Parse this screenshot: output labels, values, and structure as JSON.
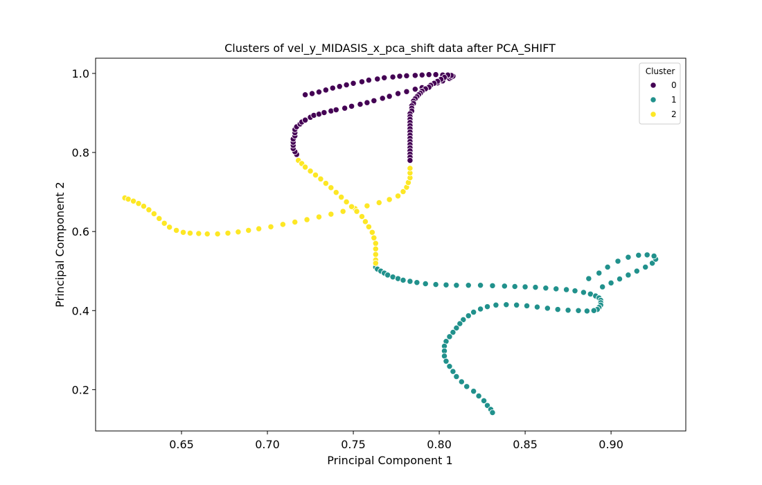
{
  "chart_data": {
    "type": "scatter",
    "title": "Clusters of vel_y_MIDASIS_x_pca_shift data after PCA_SHIFT",
    "xlabel": "Principal Component 1",
    "ylabel": "Principal Component 2",
    "xlim": [
      0.6,
      0.9435
    ],
    "ylim": [
      0.0955,
      1.0385
    ],
    "xticks": [
      "0.65",
      "0.70",
      "0.75",
      "0.80",
      "0.85",
      "0.90"
    ],
    "xtick_values": [
      0.65,
      0.7,
      0.75,
      0.8,
      0.85,
      0.9
    ],
    "yticks": [
      "0.2",
      "0.4",
      "0.6",
      "0.8",
      "1.0"
    ],
    "ytick_values": [
      0.2,
      0.4,
      0.6,
      0.8,
      1.0
    ],
    "grid": false,
    "legend": {
      "title": "Cluster",
      "placement": "upper right"
    },
    "series": [
      {
        "name": "0",
        "color": "#440154",
        "points": [
          [
            0.717,
            0.795
          ],
          [
            0.716,
            0.802
          ],
          [
            0.715,
            0.81
          ],
          [
            0.715,
            0.818
          ],
          [
            0.715,
            0.826
          ],
          [
            0.715,
            0.834
          ],
          [
            0.716,
            0.842
          ],
          [
            0.716,
            0.85
          ],
          [
            0.716,
            0.858
          ],
          [
            0.717,
            0.865
          ],
          [
            0.719,
            0.872
          ],
          [
            0.72,
            0.877
          ],
          [
            0.722,
            0.882
          ],
          [
            0.725,
            0.889
          ],
          [
            0.727,
            0.894
          ],
          [
            0.73,
            0.897
          ],
          [
            0.733,
            0.901
          ],
          [
            0.737,
            0.905
          ],
          [
            0.74,
            0.908
          ],
          [
            0.745,
            0.912
          ],
          [
            0.749,
            0.917
          ],
          [
            0.754,
            0.922
          ],
          [
            0.758,
            0.926
          ],
          [
            0.762,
            0.931
          ],
          [
            0.767,
            0.937
          ],
          [
            0.771,
            0.942
          ],
          [
            0.776,
            0.949
          ],
          [
            0.781,
            0.954
          ],
          [
            0.786,
            0.96
          ],
          [
            0.79,
            0.964
          ],
          [
            0.795,
            0.97
          ],
          [
            0.799,
            0.976
          ],
          [
            0.802,
            0.981
          ],
          [
            0.806,
            0.987
          ],
          [
            0.807,
            0.99
          ],
          [
            0.808,
            0.993
          ],
          [
            0.807,
            0.995
          ],
          [
            0.805,
            0.996
          ],
          [
            0.802,
            0.996
          ],
          [
            0.798,
            0.997
          ],
          [
            0.794,
            0.997
          ],
          [
            0.79,
            0.996
          ],
          [
            0.786,
            0.995
          ],
          [
            0.781,
            0.994
          ],
          [
            0.777,
            0.993
          ],
          [
            0.773,
            0.991
          ],
          [
            0.768,
            0.989
          ],
          [
            0.764,
            0.986
          ],
          [
            0.759,
            0.983
          ],
          [
            0.755,
            0.979
          ],
          [
            0.75,
            0.975
          ],
          [
            0.746,
            0.971
          ],
          [
            0.742,
            0.967
          ],
          [
            0.738,
            0.963
          ],
          [
            0.734,
            0.958
          ],
          [
            0.73,
            0.953
          ],
          [
            0.726,
            0.949
          ],
          [
            0.722,
            0.946
          ],
          [
            0.803,
            0.99
          ],
          [
            0.801,
            0.985
          ],
          [
            0.799,
            0.98
          ],
          [
            0.797,
            0.975
          ],
          [
            0.795,
            0.97
          ],
          [
            0.794,
            0.965
          ],
          [
            0.792,
            0.961
          ],
          [
            0.79,
            0.955
          ],
          [
            0.789,
            0.95
          ],
          [
            0.788,
            0.946
          ],
          [
            0.787,
            0.941
          ],
          [
            0.786,
            0.936
          ],
          [
            0.785,
            0.93
          ],
          [
            0.785,
            0.924
          ],
          [
            0.784,
            0.918
          ],
          [
            0.784,
            0.912
          ],
          [
            0.784,
            0.905
          ],
          [
            0.783,
            0.898
          ],
          [
            0.783,
            0.891
          ],
          [
            0.783,
            0.884
          ],
          [
            0.783,
            0.876
          ],
          [
            0.783,
            0.868
          ],
          [
            0.783,
            0.86
          ],
          [
            0.783,
            0.852
          ],
          [
            0.783,
            0.844
          ],
          [
            0.783,
            0.836
          ],
          [
            0.783,
            0.828
          ],
          [
            0.783,
            0.82
          ],
          [
            0.783,
            0.812
          ],
          [
            0.783,
            0.804
          ],
          [
            0.783,
            0.796
          ],
          [
            0.783,
            0.788
          ],
          [
            0.783,
            0.78
          ]
        ]
      },
      {
        "name": "1",
        "color": "#21918c",
        "points": [
          [
            0.763,
            0.51
          ],
          [
            0.764,
            0.505
          ],
          [
            0.766,
            0.5
          ],
          [
            0.768,
            0.495
          ],
          [
            0.77,
            0.49
          ],
          [
            0.773,
            0.485
          ],
          [
            0.776,
            0.481
          ],
          [
            0.779,
            0.477
          ],
          [
            0.783,
            0.474
          ],
          [
            0.787,
            0.471
          ],
          [
            0.792,
            0.468
          ],
          [
            0.798,
            0.466
          ],
          [
            0.804,
            0.465
          ],
          [
            0.81,
            0.464
          ],
          [
            0.817,
            0.464
          ],
          [
            0.824,
            0.464
          ],
          [
            0.831,
            0.463
          ],
          [
            0.838,
            0.462
          ],
          [
            0.844,
            0.461
          ],
          [
            0.85,
            0.46
          ],
          [
            0.856,
            0.459
          ],
          [
            0.862,
            0.457
          ],
          [
            0.868,
            0.455
          ],
          [
            0.874,
            0.453
          ],
          [
            0.879,
            0.45
          ],
          [
            0.884,
            0.446
          ],
          [
            0.888,
            0.442
          ],
          [
            0.891,
            0.437
          ],
          [
            0.893,
            0.432
          ],
          [
            0.894,
            0.426
          ],
          [
            0.894,
            0.42
          ],
          [
            0.894,
            0.414
          ],
          [
            0.893,
            0.408
          ],
          [
            0.892,
            0.403
          ],
          [
            0.89,
            0.4
          ],
          [
            0.886,
            0.399
          ],
          [
            0.881,
            0.4
          ],
          [
            0.875,
            0.401
          ],
          [
            0.869,
            0.403
          ],
          [
            0.863,
            0.406
          ],
          [
            0.857,
            0.409
          ],
          [
            0.851,
            0.412
          ],
          [
            0.845,
            0.414
          ],
          [
            0.839,
            0.415
          ],
          [
            0.833,
            0.414
          ],
          [
            0.828,
            0.41
          ],
          [
            0.824,
            0.404
          ],
          [
            0.82,
            0.396
          ],
          [
            0.817,
            0.387
          ],
          [
            0.814,
            0.377
          ],
          [
            0.812,
            0.367
          ],
          [
            0.81,
            0.356
          ],
          [
            0.808,
            0.345
          ],
          [
            0.806,
            0.334
          ],
          [
            0.804,
            0.322
          ],
          [
            0.803,
            0.31
          ],
          [
            0.803,
            0.298
          ],
          [
            0.803,
            0.285
          ],
          [
            0.804,
            0.272
          ],
          [
            0.806,
            0.259
          ],
          [
            0.808,
            0.246
          ],
          [
            0.81,
            0.233
          ],
          [
            0.813,
            0.22
          ],
          [
            0.816,
            0.208
          ],
          [
            0.82,
            0.196
          ],
          [
            0.823,
            0.184
          ],
          [
            0.826,
            0.172
          ],
          [
            0.828,
            0.16
          ],
          [
            0.83,
            0.15
          ],
          [
            0.831,
            0.142
          ],
          [
            0.895,
            0.46
          ],
          [
            0.9,
            0.47
          ],
          [
            0.905,
            0.48
          ],
          [
            0.91,
            0.49
          ],
          [
            0.915,
            0.5
          ],
          [
            0.92,
            0.51
          ],
          [
            0.924,
            0.52
          ],
          [
            0.926,
            0.53
          ],
          [
            0.925,
            0.538
          ],
          [
            0.921,
            0.541
          ],
          [
            0.916,
            0.54
          ],
          [
            0.91,
            0.535
          ],
          [
            0.904,
            0.525
          ],
          [
            0.898,
            0.51
          ],
          [
            0.893,
            0.495
          ],
          [
            0.887,
            0.481
          ]
        ]
      },
      {
        "name": "2",
        "color": "#fde725",
        "points": [
          [
            0.617,
            0.685
          ],
          [
            0.619,
            0.682
          ],
          [
            0.622,
            0.677
          ],
          [
            0.625,
            0.671
          ],
          [
            0.628,
            0.664
          ],
          [
            0.631,
            0.655
          ],
          [
            0.634,
            0.645
          ],
          [
            0.637,
            0.633
          ],
          [
            0.64,
            0.621
          ],
          [
            0.643,
            0.611
          ],
          [
            0.647,
            0.603
          ],
          [
            0.651,
            0.598
          ],
          [
            0.655,
            0.596
          ],
          [
            0.66,
            0.595
          ],
          [
            0.665,
            0.594
          ],
          [
            0.671,
            0.594
          ],
          [
            0.677,
            0.596
          ],
          [
            0.683,
            0.599
          ],
          [
            0.689,
            0.603
          ],
          [
            0.695,
            0.607
          ],
          [
            0.702,
            0.612
          ],
          [
            0.709,
            0.618
          ],
          [
            0.716,
            0.624
          ],
          [
            0.723,
            0.63
          ],
          [
            0.73,
            0.637
          ],
          [
            0.737,
            0.644
          ],
          [
            0.744,
            0.651
          ],
          [
            0.751,
            0.658
          ],
          [
            0.758,
            0.665
          ],
          [
            0.765,
            0.673
          ],
          [
            0.771,
            0.681
          ],
          [
            0.776,
            0.69
          ],
          [
            0.779,
            0.701
          ],
          [
            0.781,
            0.712
          ],
          [
            0.782,
            0.724
          ],
          [
            0.783,
            0.736
          ],
          [
            0.783,
            0.748
          ],
          [
            0.783,
            0.76
          ],
          [
            0.718,
            0.78
          ],
          [
            0.72,
            0.772
          ],
          [
            0.722,
            0.763
          ],
          [
            0.725,
            0.753
          ],
          [
            0.728,
            0.743
          ],
          [
            0.731,
            0.733
          ],
          [
            0.734,
            0.722
          ],
          [
            0.737,
            0.711
          ],
          [
            0.74,
            0.699
          ],
          [
            0.743,
            0.687
          ],
          [
            0.746,
            0.675
          ],
          [
            0.749,
            0.663
          ],
          [
            0.752,
            0.651
          ],
          [
            0.755,
            0.638
          ],
          [
            0.757,
            0.625
          ],
          [
            0.759,
            0.612
          ],
          [
            0.761,
            0.598
          ],
          [
            0.762,
            0.584
          ],
          [
            0.763,
            0.57
          ],
          [
            0.763,
            0.556
          ],
          [
            0.763,
            0.542
          ],
          [
            0.763,
            0.528
          ],
          [
            0.763,
            0.52
          ]
        ]
      }
    ]
  }
}
